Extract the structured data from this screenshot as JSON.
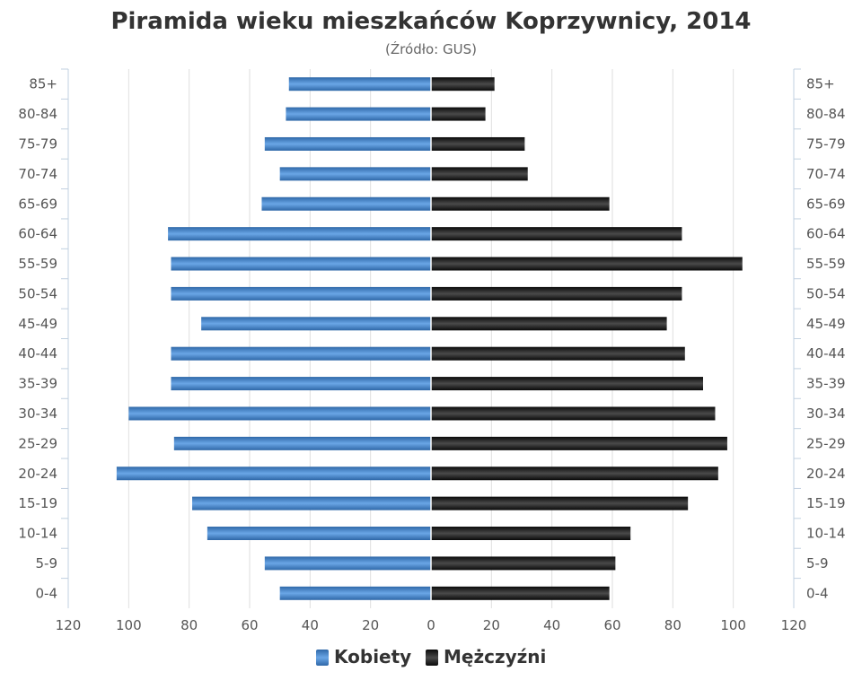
{
  "chart_data": {
    "type": "bar",
    "orientation": "horizontal-population-pyramid",
    "title": "Piramida wieku mieszkańców Koprzywnicy, 2014",
    "subtitle": "(Źródło: GUS)",
    "categories": [
      "85+",
      "80-84",
      "75-79",
      "70-74",
      "65-69",
      "60-64",
      "55-59",
      "50-54",
      "45-49",
      "40-44",
      "35-39",
      "30-34",
      "25-29",
      "20-24",
      "15-19",
      "10-14",
      "5-9",
      "0-4"
    ],
    "series": [
      {
        "name": "Kobiety",
        "color": "#3f7fc4",
        "values": [
          47,
          48,
          55,
          50,
          56,
          87,
          86,
          86,
          76,
          86,
          86,
          100,
          85,
          104,
          79,
          74,
          55,
          50
        ]
      },
      {
        "name": "Mężczyźni",
        "color": "#1a1a1a",
        "values": [
          21,
          18,
          31,
          32,
          59,
          83,
          103,
          83,
          78,
          84,
          90,
          94,
          98,
          95,
          85,
          66,
          61,
          59
        ]
      }
    ],
    "xlim": [
      -120,
      120
    ],
    "x_ticks": [
      "120",
      "100",
      "80",
      "60",
      "40",
      "20",
      "0",
      "20",
      "40",
      "60",
      "80",
      "100",
      "120"
    ],
    "grid": true,
    "legend": "bottom-center"
  }
}
